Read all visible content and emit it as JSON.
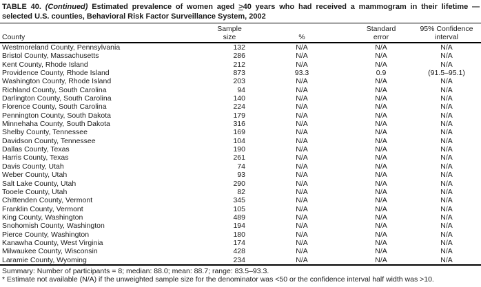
{
  "title": {
    "table_number": "TABLE 40.",
    "continued": "(Continued)",
    "line1_body": "Estimated prevalence of women aged",
    "geq_symbol": ">",
    "line1_tail": "40 years who had received a mammogram in their lifetime —",
    "line2": "selected U.S. counties, Behavioral Risk Factor Surveillance System, 2002"
  },
  "table": {
    "columns": [
      {
        "id": "county",
        "header_line1": "",
        "header_line2": "County"
      },
      {
        "id": "sample_size",
        "header_line1": "Sample",
        "header_line2": "size"
      },
      {
        "id": "percent",
        "header_line1": "",
        "header_line2": "%"
      },
      {
        "id": "standard_error",
        "header_line1": "Standard",
        "header_line2": "error"
      },
      {
        "id": "confidence_interval",
        "header_line1": "95% Confidence",
        "header_line2": "interval"
      }
    ],
    "rows": [
      {
        "county": "Westmoreland County, Pennsylvania",
        "sample_size": "132",
        "percent": "N/A",
        "standard_error": "N/A",
        "confidence_interval": "N/A"
      },
      {
        "county": "Bristol County, Massachusetts",
        "sample_size": "286",
        "percent": "N/A",
        "standard_error": "N/A",
        "confidence_interval": "N/A"
      },
      {
        "county": "Kent County, Rhode Island",
        "sample_size": "212",
        "percent": "N/A",
        "standard_error": "N/A",
        "confidence_interval": "N/A"
      },
      {
        "county": "Providence County, Rhode Island",
        "sample_size": "873",
        "percent": "93.3",
        "standard_error": "0.9",
        "confidence_interval": "(91.5–95.1)"
      },
      {
        "county": "Washington County, Rhode Island",
        "sample_size": "203",
        "percent": "N/A",
        "standard_error": "N/A",
        "confidence_interval": "N/A"
      },
      {
        "county": "Richland County, South Carolina",
        "sample_size": "94",
        "percent": "N/A",
        "standard_error": "N/A",
        "confidence_interval": "N/A"
      },
      {
        "county": "Darlington County, South Carolina",
        "sample_size": "140",
        "percent": "N/A",
        "standard_error": "N/A",
        "confidence_interval": "N/A"
      },
      {
        "county": "Florence County, South Carolina",
        "sample_size": "224",
        "percent": "N/A",
        "standard_error": "N/A",
        "confidence_interval": "N/A"
      },
      {
        "county": "Pennington County, South Dakota",
        "sample_size": "179",
        "percent": "N/A",
        "standard_error": "N/A",
        "confidence_interval": "N/A"
      },
      {
        "county": "Minnehaha County, South Dakota",
        "sample_size": "316",
        "percent": "N/A",
        "standard_error": "N/A",
        "confidence_interval": "N/A"
      },
      {
        "county": "Shelby County, Tennessee",
        "sample_size": "169",
        "percent": "N/A",
        "standard_error": "N/A",
        "confidence_interval": "N/A"
      },
      {
        "county": "Davidson County, Tennessee",
        "sample_size": "104",
        "percent": "N/A",
        "standard_error": "N/A",
        "confidence_interval": "N/A"
      },
      {
        "county": "Dallas County, Texas",
        "sample_size": "190",
        "percent": "N/A",
        "standard_error": "N/A",
        "confidence_interval": "N/A"
      },
      {
        "county": "Harris County, Texas",
        "sample_size": "261",
        "percent": "N/A",
        "standard_error": "N/A",
        "confidence_interval": "N/A"
      },
      {
        "county": "Davis County, Utah",
        "sample_size": "74",
        "percent": "N/A",
        "standard_error": "N/A",
        "confidence_interval": "N/A"
      },
      {
        "county": "Weber County, Utah",
        "sample_size": "93",
        "percent": "N/A",
        "standard_error": "N/A",
        "confidence_interval": "N/A"
      },
      {
        "county": "Salt Lake County, Utah",
        "sample_size": "290",
        "percent": "N/A",
        "standard_error": "N/A",
        "confidence_interval": "N/A"
      },
      {
        "county": "Tooele County, Utah",
        "sample_size": "82",
        "percent": "N/A",
        "standard_error": "N/A",
        "confidence_interval": "N/A"
      },
      {
        "county": "Chittenden County, Vermont",
        "sample_size": "345",
        "percent": "N/A",
        "standard_error": "N/A",
        "confidence_interval": "N/A"
      },
      {
        "county": "Franklin County, Vermont",
        "sample_size": "105",
        "percent": "N/A",
        "standard_error": "N/A",
        "confidence_interval": "N/A"
      },
      {
        "county": "King County, Washington",
        "sample_size": "489",
        "percent": "N/A",
        "standard_error": "N/A",
        "confidence_interval": "N/A"
      },
      {
        "county": "Snohomish County, Washington",
        "sample_size": "194",
        "percent": "N/A",
        "standard_error": "N/A",
        "confidence_interval": "N/A"
      },
      {
        "county": "Pierce County, Washington",
        "sample_size": "180",
        "percent": "N/A",
        "standard_error": "N/A",
        "confidence_interval": "N/A"
      },
      {
        "county": "Kanawha County, West Virginia",
        "sample_size": "174",
        "percent": "N/A",
        "standard_error": "N/A",
        "confidence_interval": "N/A"
      },
      {
        "county": "Milwaukee County, Wisconsin",
        "sample_size": "428",
        "percent": "N/A",
        "standard_error": "N/A",
        "confidence_interval": "N/A"
      },
      {
        "county": "Laramie County, Wyoming",
        "sample_size": "234",
        "percent": "N/A",
        "standard_error": "N/A",
        "confidence_interval": "N/A"
      }
    ]
  },
  "footer": {
    "summary": "Summary: Number of participants = 8; median: 88.0; mean: 88.7; range: 83.5–93.3.",
    "footnote": "* Estimate not available (N/A) if the unweighted sample size for the denominator was <50 or the confidence interval half width was >10."
  }
}
